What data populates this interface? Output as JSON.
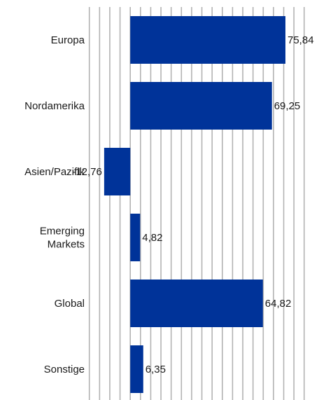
{
  "chart_data": {
    "type": "bar",
    "orientation": "horizontal",
    "categories": [
      "Europa",
      "Nordamerika",
      "Asien/Pazifik",
      "Emerging Markets",
      "Global",
      "Sonstige"
    ],
    "category_lines": [
      [
        "Europa"
      ],
      [
        "Nordamerika"
      ],
      [
        "Asien/Pazifik"
      ],
      [
        "Emerging",
        "Markets"
      ],
      [
        "Global"
      ],
      [
        "Sonstige"
      ]
    ],
    "values": [
      75.84,
      69.25,
      -12.76,
      4.82,
      64.82,
      6.35
    ],
    "value_labels": [
      "75,84",
      "69,25",
      "-12,76",
      "4,82",
      "64,82",
      "6,35"
    ],
    "xlim": [
      -20,
      90
    ],
    "grid": true,
    "bar_color": "#003399",
    "grid_color": "#b3b3b3"
  }
}
